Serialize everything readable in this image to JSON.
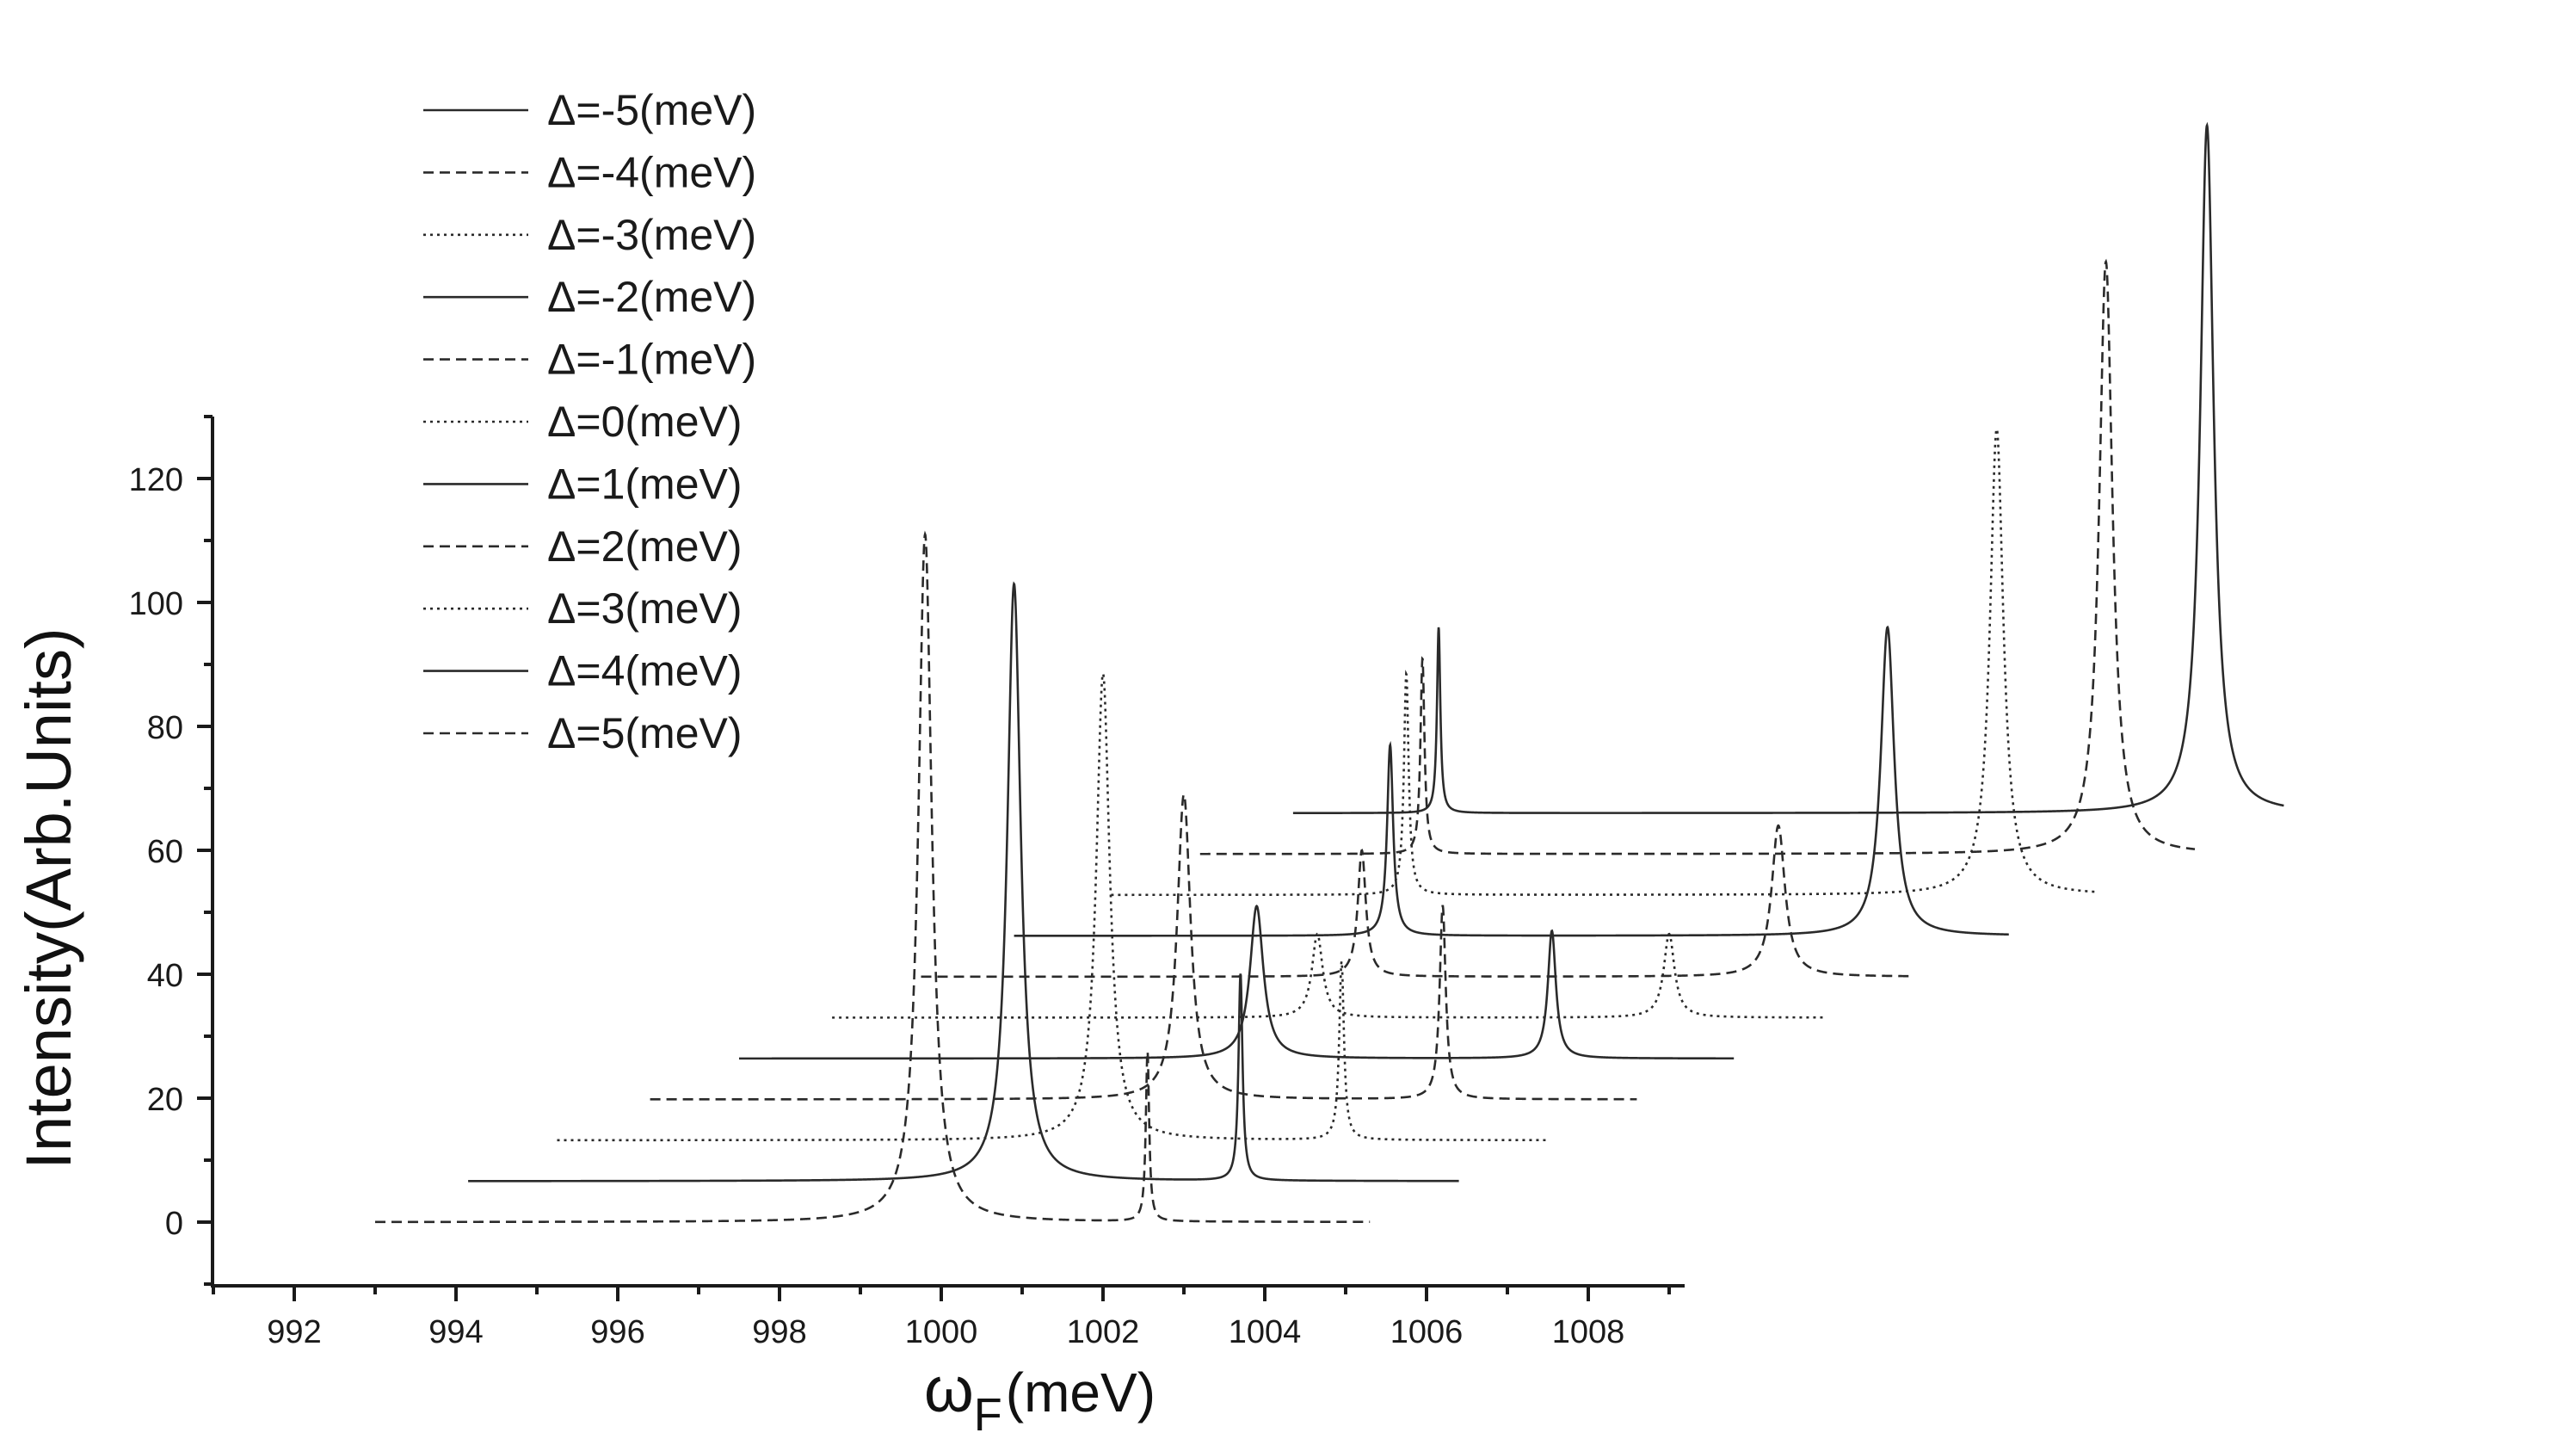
{
  "chart_data": {
    "type": "line",
    "style": "waterfall (offset stacked lines)",
    "xlabel": {
      "symbol": "ω",
      "subscript": "F",
      "unit": "(meV)"
    },
    "ylabel": "Intensity(Arb.Units)",
    "xlim": [
      991,
      1009.2
    ],
    "ylim": [
      -10,
      130
    ],
    "xticks": [
      992,
      994,
      996,
      998,
      1000,
      1002,
      1004,
      1006,
      1008
    ],
    "yticks": [
      0,
      20,
      40,
      60,
      80,
      100,
      120
    ],
    "legend_position": "top-left",
    "x_offset_per_series": -1.35,
    "y_offset_per_series": -6.6,
    "series": [
      {
        "name": "Δ=-5(meV)",
        "dash": "solid",
        "baseline": 66.0,
        "x_range": [
          1004.35,
          1016.6
        ],
        "peaks": [
          {
            "x": 1006.15,
            "y": 96.0,
            "w": 0.025
          },
          {
            "x": 1015.65,
            "y": 177.0,
            "w": 0.1
          }
        ]
      },
      {
        "name": "Δ=-4(meV)",
        "dash": "dashed",
        "baseline": 59.4,
        "x_range": [
          1003.2,
          1015.5
        ],
        "peaks": [
          {
            "x": 1005.95,
            "y": 91.0,
            "w": 0.03
          },
          {
            "x": 1014.4,
            "y": 155.0,
            "w": 0.1
          }
        ]
      },
      {
        "name": "Δ=-3(meV)",
        "dash": "dotted",
        "baseline": 52.8,
        "x_range": [
          1002.1,
          1014.3
        ],
        "peaks": [
          {
            "x": 1005.75,
            "y": 88.5,
            "w": 0.035
          },
          {
            "x": 1013.05,
            "y": 128.0,
            "w": 0.1
          }
        ]
      },
      {
        "name": "Δ=-2(meV)",
        "dash": "solid",
        "baseline": 46.2,
        "x_range": [
          1000.9,
          1013.2
        ],
        "peaks": [
          {
            "x": 1005.55,
            "y": 77.0,
            "w": 0.045
          },
          {
            "x": 1011.7,
            "y": 96.0,
            "w": 0.1
          }
        ]
      },
      {
        "name": "Δ=-1(meV)",
        "dash": "dashed",
        "baseline": 39.6,
        "x_range": [
          999.75,
          1012.0
        ],
        "peaks": [
          {
            "x": 1005.2,
            "y": 60.0,
            "w": 0.06
          },
          {
            "x": 1010.35,
            "y": 64.0,
            "w": 0.1
          }
        ]
      },
      {
        "name": "Δ=0(meV)",
        "dash": "dotted",
        "baseline": 33.0,
        "x_range": [
          998.65,
          1010.9
        ],
        "peaks": [
          {
            "x": 1004.65,
            "y": 46.5,
            "w": 0.08
          },
          {
            "x": 1009.0,
            "y": 46.5,
            "w": 0.08
          }
        ]
      },
      {
        "name": "Δ=1(meV)",
        "dash": "solid",
        "baseline": 26.4,
        "x_range": [
          997.5,
          1009.8
        ],
        "peaks": [
          {
            "x": 1003.9,
            "y": 51.0,
            "w": 0.1
          },
          {
            "x": 1007.55,
            "y": 47.0,
            "w": 0.06
          }
        ]
      },
      {
        "name": "Δ=2(meV)",
        "dash": "dashed",
        "baseline": 19.8,
        "x_range": [
          996.4,
          1008.6
        ],
        "peaks": [
          {
            "x": 1003.0,
            "y": 69.0,
            "w": 0.1
          },
          {
            "x": 1006.2,
            "y": 51.0,
            "w": 0.045
          }
        ]
      },
      {
        "name": "Δ=3(meV)",
        "dash": "dotted",
        "baseline": 13.2,
        "x_range": [
          995.25,
          1007.5
        ],
        "peaks": [
          {
            "x": 1002.0,
            "y": 88.5,
            "w": 0.1
          },
          {
            "x": 1004.95,
            "y": 42.0,
            "w": 0.035
          }
        ]
      },
      {
        "name": "Δ=4(meV)",
        "dash": "solid",
        "baseline": 6.6,
        "x_range": [
          994.15,
          1006.4
        ],
        "peaks": [
          {
            "x": 1000.9,
            "y": 103.0,
            "w": 0.1
          },
          {
            "x": 1003.7,
            "y": 40.0,
            "w": 0.03
          }
        ]
      },
      {
        "name": "Δ=5(meV)",
        "dash": "dashed",
        "baseline": 0.0,
        "x_range": [
          993.0,
          1005.3
        ],
        "peaks": [
          {
            "x": 999.8,
            "y": 111.0,
            "w": 0.1
          },
          {
            "x": 1002.55,
            "y": 27.5,
            "w": 0.025
          }
        ]
      }
    ]
  }
}
